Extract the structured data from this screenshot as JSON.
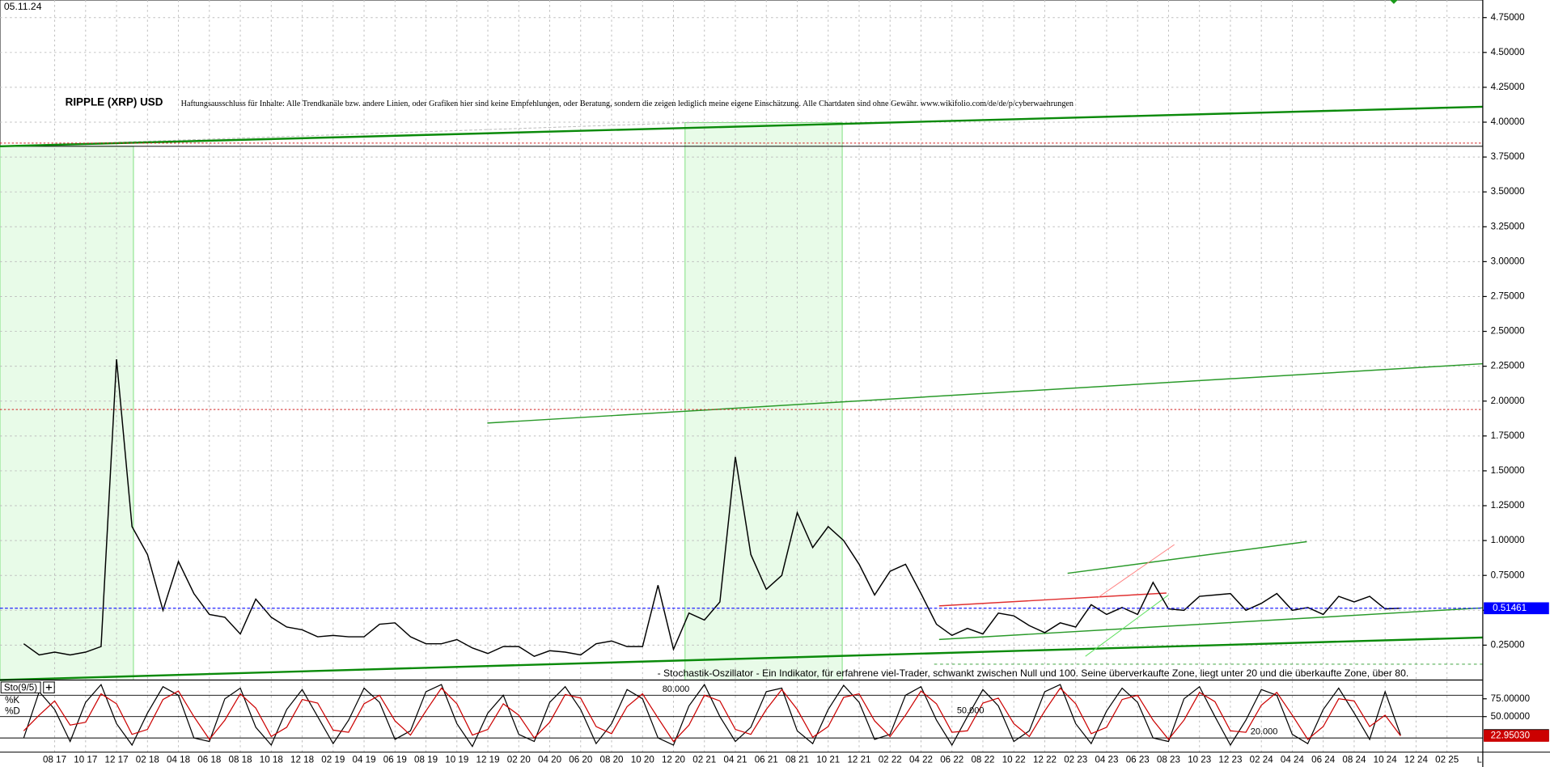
{
  "date": "05.11.24",
  "disclaimer": "Haftungsausschluss für Inhalte: Alle Trendkanäle bzw. andere Linien, oder Grafiken hier sind keine Empfehlungen, oder Beratung, sondern die zeigen lediglich meine eigene Einschätzung. Alle Chartdaten sind ohne Gewähr. www.wikifolio.com/de/de/p/cyberwaehrungen",
  "corner_label": "L",
  "chart_data": [
    {
      "type": "line",
      "title": "RIPPLE (XRP) USD",
      "categories": [
        null,
        null,
        "08 17",
        null,
        "10 17",
        null,
        "12 17",
        null,
        "02 18",
        null,
        "04 18",
        null,
        "06 18",
        null,
        "08 18",
        null,
        "10 18",
        null,
        "12 18",
        null,
        "02 19",
        null,
        "04 19",
        null,
        "06 19",
        null,
        "08 19",
        null,
        "10 19",
        null,
        "12 19",
        null,
        "02 20",
        null,
        "04 20",
        null,
        "06 20",
        null,
        "08 20",
        null,
        "10 20",
        null,
        "12 20",
        null,
        "02 21",
        null,
        "04 21",
        null,
        "06 21",
        null,
        "08 21",
        null,
        "10 21",
        null,
        "12 21",
        null,
        "02 22",
        null,
        "04 22",
        null,
        "06 22",
        null,
        "08 22",
        null,
        "10 22",
        null,
        "12 22",
        null,
        "02 23",
        null,
        "04 23",
        null,
        "06 23",
        null,
        "08 23",
        null,
        "10 23",
        null,
        "12 23",
        null,
        "02 24",
        null,
        "04 24",
        null,
        "06 24",
        null,
        "08 24",
        null,
        "10 24",
        null,
        "12 24",
        null,
        "02 25"
      ],
      "values": [
        0.26,
        0.18,
        0.2,
        0.18,
        0.2,
        0.24,
        2.3,
        1.1,
        0.9,
        0.5,
        0.85,
        0.62,
        0.47,
        0.45,
        0.33,
        0.58,
        0.45,
        0.38,
        0.36,
        0.31,
        0.32,
        0.31,
        0.31,
        0.4,
        0.41,
        0.31,
        0.26,
        0.26,
        0.29,
        0.23,
        0.19,
        0.24,
        0.24,
        0.17,
        0.21,
        0.2,
        0.18,
        0.26,
        0.28,
        0.24,
        0.24,
        0.68,
        0.22,
        0.48,
        0.43,
        0.56,
        1.6,
        0.9,
        0.65,
        0.75,
        1.2,
        0.95,
        1.1,
        1.0,
        0.83,
        0.61,
        0.78,
        0.83,
        0.62,
        0.4,
        0.32,
        0.37,
        0.33,
        0.48,
        0.46,
        0.39,
        0.34,
        0.41,
        0.38,
        0.54,
        0.47,
        0.52,
        0.47,
        0.7,
        0.51,
        0.5,
        0.6,
        0.61,
        0.62,
        0.5,
        0.55,
        0.62,
        0.5,
        0.52,
        0.47,
        0.6,
        0.56,
        0.6,
        0.51,
        0.51461,
        null,
        null,
        null
      ],
      "color": "#000000",
      "ylim": [
        0,
        4.876
      ],
      "yticks": [
        {
          "value": 0.25,
          "label": "0.25000"
        },
        {
          "value": 0.5,
          "label": "0.50000"
        },
        {
          "value": 0.75,
          "label": "0.75000"
        },
        {
          "value": 1,
          "label": "1.00000"
        },
        {
          "value": 1.25,
          "label": "1.25000"
        },
        {
          "value": 1.5,
          "label": "1.50000"
        },
        {
          "value": 1.75,
          "label": "1.75000"
        },
        {
          "value": 2,
          "label": "2.00000"
        },
        {
          "value": 2.25,
          "label": "2.25000"
        },
        {
          "value": 2.5,
          "label": "2.50000"
        },
        {
          "value": 2.75,
          "label": "2.75000"
        },
        {
          "value": 3,
          "label": "3.00000"
        },
        {
          "value": 3.25,
          "label": "3.25000"
        },
        {
          "value": 3.5,
          "label": "3.50000"
        },
        {
          "value": 3.75,
          "label": "3.75000"
        },
        {
          "value": 4,
          "label": "4.00000"
        },
        {
          "value": 4.25,
          "label": "4.25000"
        },
        {
          "value": 4.5,
          "label": "4.50000"
        },
        {
          "value": 4.75,
          "label": "4.75000"
        }
      ],
      "grid": true,
      "reference_lines": [
        3.85,
        1.94
      ]
    },
    {
      "type": "stochastic",
      "title": "Sto(9/5)",
      "annotation": "- Stochastik-Oszillator - Ein Indikator, für erfahrene viel-Trader, schwankt zwischen Null und 100. Seine überverkaufte Zone, liegt unter 20 und die überkaufte Zone, über 80.",
      "series": [
        {
          "name": "%K",
          "color": "#000000",
          "values": [
            20,
            85,
            60,
            15,
            70,
            95,
            40,
            10,
            55,
            92,
            80,
            20,
            15,
            75,
            90,
            35,
            10,
            60,
            88,
            50,
            12,
            45,
            90,
            70,
            18,
            30,
            85,
            95,
            40,
            8,
            55,
            80,
            25,
            15,
            70,
            92,
            60,
            12,
            40,
            88,
            75,
            20,
            10,
            65,
            95,
            50,
            15,
            35,
            85,
            90,
            30,
            12,
            60,
            94,
            70,
            18,
            25,
            80,
            92,
            45,
            10,
            50,
            88,
            65,
            15,
            30,
            85,
            95,
            40,
            12,
            58,
            90,
            70,
            20,
            15,
            75,
            92,
            50,
            10,
            45,
            88,
            80,
            25,
            12,
            60,
            90,
            55,
            18,
            85,
            23.95885
          ]
        },
        {
          "name": "%D",
          "color": "#cc0000",
          "values": [
            30,
            52,
            72,
            38,
            42,
            82,
            68,
            25,
            32,
            74,
            86,
            50,
            18,
            45,
            82,
            62,
            22,
            35,
            74,
            69,
            31,
            28,
            68,
            80,
            44,
            24,
            58,
            90,
            68,
            24,
            32,
            68,
            52,
            20,
            42,
            81,
            76,
            36,
            26,
            64,
            82,
            48,
            15,
            38,
            80,
            72,
            32,
            25,
            60,
            88,
            60,
            21,
            36,
            77,
            82,
            44,
            22,
            52,
            86,
            68,
            28,
            30,
            69,
            76,
            40,
            22,
            58,
            90,
            68,
            26,
            35,
            74,
            80,
            45,
            18,
            45,
            84,
            71,
            30,
            28,
            66,
            84,
            52,
            18,
            36,
            75,
            72,
            36,
            52,
            22.9503
          ],
          "last_value_label": "22.95030"
        }
      ],
      "ylim": [
        0,
        100
      ],
      "yticks": [
        {
          "value": 75,
          "label": "75.00000"
        },
        {
          "value": 50,
          "label": "50.00000"
        }
      ],
      "levels": [
        {
          "value": 80,
          "label": "80.000"
        },
        {
          "value": 50,
          "label": "50.000"
        },
        {
          "value": 20,
          "label": "20.000"
        }
      ]
    }
  ]
}
